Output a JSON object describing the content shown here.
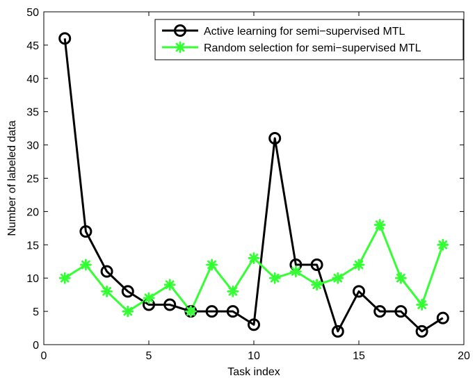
{
  "chart_data": {
    "type": "line",
    "title": "",
    "xlabel": "Task index",
    "ylabel": "Number of labeled data",
    "xlim": [
      0,
      20
    ],
    "ylim": [
      0,
      50
    ],
    "xticks": [
      0,
      5,
      10,
      15,
      20
    ],
    "yticks": [
      0,
      5,
      10,
      15,
      20,
      25,
      30,
      35,
      40,
      45,
      50
    ],
    "grid": false,
    "legend_position": "top-right",
    "x": [
      1,
      2,
      3,
      4,
      5,
      6,
      7,
      8,
      9,
      10,
      11,
      12,
      13,
      14,
      15,
      16,
      17,
      18,
      19
    ],
    "series": [
      {
        "name": "Active learning for semi−supervised MTL",
        "color": "#000000",
        "marker": "circle",
        "values": [
          46,
          17,
          11,
          8,
          6,
          6,
          5,
          5,
          5,
          3,
          31,
          12,
          12,
          2,
          8,
          5,
          5,
          2,
          4
        ]
      },
      {
        "name": "Random selection for semi−supervised MTL",
        "color": "#33ff33",
        "marker": "asterisk",
        "values": [
          10,
          12,
          8,
          5,
          7,
          9,
          5,
          12,
          8,
          13,
          10,
          11,
          9,
          10,
          12,
          18,
          10,
          6,
          15
        ]
      }
    ]
  }
}
